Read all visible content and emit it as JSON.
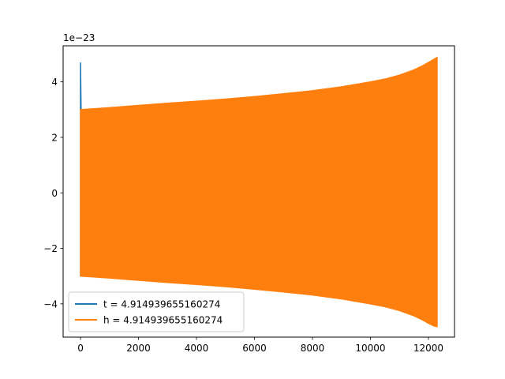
{
  "chart_data": {
    "type": "line",
    "title": "",
    "xlabel": "",
    "ylabel": "",
    "y_offset_label": "1e−23",
    "xlim": [
      -600,
      12900
    ],
    "ylim": [
      -5.2,
      5.3
    ],
    "x_ticks": [
      0,
      2000,
      4000,
      6000,
      8000,
      10000,
      12000
    ],
    "x_tick_labels": [
      "0",
      "2000",
      "4000",
      "6000",
      "8000",
      "10000",
      "12000"
    ],
    "y_ticks": [
      -4,
      -2,
      0,
      2,
      4
    ],
    "y_tick_labels": [
      "−4",
      "−2",
      "0",
      "2",
      "4"
    ],
    "grid": false,
    "legend_position": "lower-left",
    "series": [
      {
        "name": "t = 4.914939655160274",
        "color": "#1f77b4",
        "envelope_x": [
          0,
          0,
          20,
          40
        ],
        "envelope_upper": [
          4.7,
          4.7,
          3.0,
          3.0
        ],
        "envelope_lower": [
          -3.0,
          -3.0,
          -3.0,
          -3.0
        ]
      },
      {
        "name": "h = 4.914939655160274",
        "color": "#ff7f0e",
        "envelope_x": [
          0,
          1000,
          2000,
          3000,
          4000,
          5000,
          6000,
          7000,
          8000,
          9000,
          10000,
          10500,
          11000,
          11500,
          11800,
          12000,
          12200,
          12300
        ],
        "envelope_upper": [
          3.0,
          3.07,
          3.15,
          3.23,
          3.3,
          3.38,
          3.47,
          3.57,
          3.68,
          3.82,
          4.0,
          4.1,
          4.24,
          4.43,
          4.58,
          4.7,
          4.82,
          4.88
        ],
        "envelope_lower": [
          -3.0,
          -3.07,
          -3.15,
          -3.23,
          -3.3,
          -3.38,
          -3.47,
          -3.57,
          -3.68,
          -3.82,
          -4.0,
          -4.1,
          -4.24,
          -4.43,
          -4.58,
          -4.7,
          -4.8,
          -4.82
        ]
      }
    ]
  }
}
